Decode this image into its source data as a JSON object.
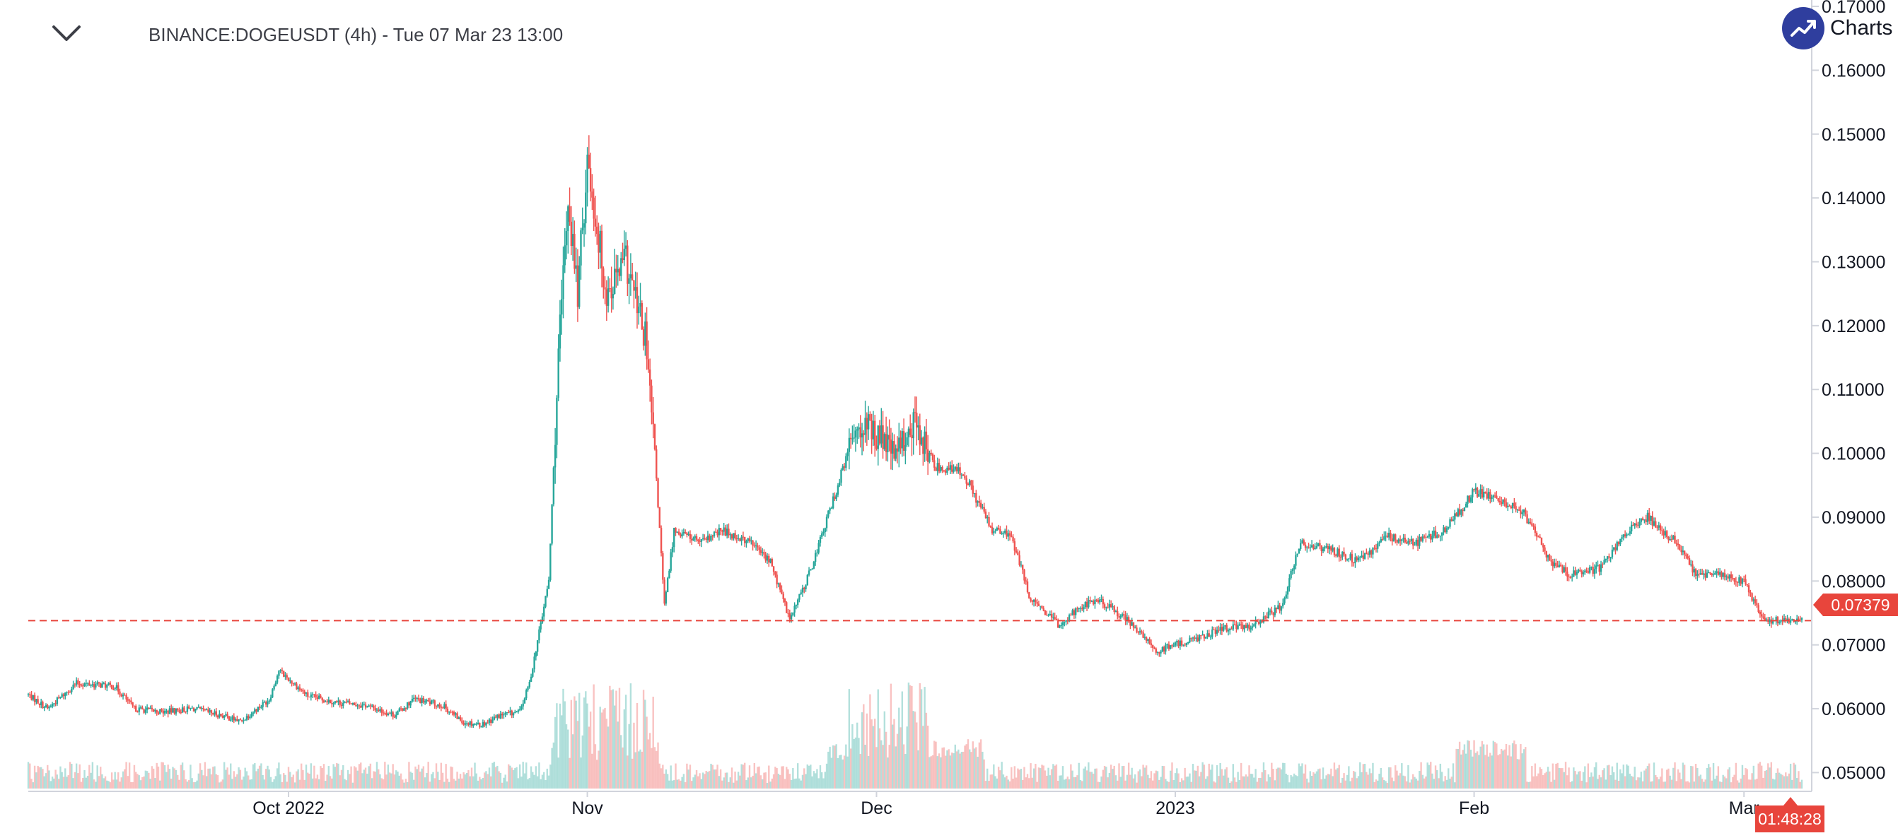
{
  "header": {
    "title": "BINANCE:DOGEUSDT (4h) - Tue 07 Mar 23 13:00"
  },
  "brand": {
    "label": "Charts p"
  },
  "price_marker": {
    "label": "0.07379"
  },
  "countdown": {
    "label": "01:48:28"
  },
  "colors": {
    "up": "#26a69a",
    "down": "#ef5350",
    "axis": "#d1d4dc",
    "text": "#131722",
    "marker": "#e8453c"
  },
  "chart_data": {
    "type": "candlestick",
    "symbol": "BINANCE:DOGEUSDT",
    "interval": "4h",
    "y_axis_ticks": [
      "0.17000",
      "0.16000",
      "0.15000",
      "0.14000",
      "0.13000",
      "0.12000",
      "0.11000",
      "0.10000",
      "0.09000",
      "0.08000",
      "0.07000",
      "0.06000",
      "0.05000"
    ],
    "ylim": [
      0.0475,
      0.171
    ],
    "x_axis_ticks": [
      {
        "label": "Oct 2022",
        "date": "2022-10-01"
      },
      {
        "label": "Nov",
        "date": "2022-11-01"
      },
      {
        "label": "Dec",
        "date": "2022-12-01"
      },
      {
        "label": "2023",
        "date": "2023-01-01"
      },
      {
        "label": "Feb",
        "date": "2023-02-01"
      },
      {
        "label": "Mar",
        "date": "2023-03-01"
      }
    ],
    "x_range": [
      "2022-09-04",
      "2023-03-07"
    ],
    "last_price": 0.07379,
    "series": [
      {
        "name": "close",
        "points": [
          [
            "2022-09-04",
            0.0622
          ],
          [
            "2022-09-06",
            0.06
          ],
          [
            "2022-09-09",
            0.064
          ],
          [
            "2022-09-13",
            0.0635
          ],
          [
            "2022-09-15",
            0.06
          ],
          [
            "2022-09-18",
            0.0595
          ],
          [
            "2022-09-21",
            0.06
          ],
          [
            "2022-09-24",
            0.059
          ],
          [
            "2022-09-26",
            0.058
          ],
          [
            "2022-09-29",
            0.0615
          ],
          [
            "2022-09-30",
            0.066
          ],
          [
            "2022-10-03",
            0.062
          ],
          [
            "2022-10-06",
            0.061
          ],
          [
            "2022-10-09",
            0.0605
          ],
          [
            "2022-10-12",
            0.059
          ],
          [
            "2022-10-14",
            0.0615
          ],
          [
            "2022-10-17",
            0.0605
          ],
          [
            "2022-10-19",
            0.058
          ],
          [
            "2022-10-21",
            0.0575
          ],
          [
            "2022-10-23",
            0.059
          ],
          [
            "2022-10-25",
            0.0595
          ],
          [
            "2022-10-26",
            0.064
          ],
          [
            "2022-10-27",
            0.072
          ],
          [
            "2022-10-28",
            0.08
          ],
          [
            "2022-10-29",
            0.115
          ],
          [
            "2022-10-30",
            0.14
          ],
          [
            "2022-10-31",
            0.125
          ],
          [
            "2022-11-01",
            0.146
          ],
          [
            "2022-11-03",
            0.125
          ],
          [
            "2022-11-05",
            0.13
          ],
          [
            "2022-11-07",
            0.118
          ],
          [
            "2022-11-08",
            0.1
          ],
          [
            "2022-11-09",
            0.076
          ],
          [
            "2022-11-10",
            0.088
          ],
          [
            "2022-11-13",
            0.086
          ],
          [
            "2022-11-15",
            0.088
          ],
          [
            "2022-11-18",
            0.086
          ],
          [
            "2022-11-20",
            0.083
          ],
          [
            "2022-11-22",
            0.074
          ],
          [
            "2022-11-24",
            0.081
          ],
          [
            "2022-11-27",
            0.095
          ],
          [
            "2022-11-29",
            0.105
          ],
          [
            "2022-12-01",
            0.103
          ],
          [
            "2022-12-03",
            0.1
          ],
          [
            "2022-12-05",
            0.105
          ],
          [
            "2022-12-07",
            0.098
          ],
          [
            "2022-12-10",
            0.097
          ],
          [
            "2022-12-13",
            0.088
          ],
          [
            "2022-12-15",
            0.087
          ],
          [
            "2022-12-17",
            0.077
          ],
          [
            "2022-12-20",
            0.073
          ],
          [
            "2022-12-22",
            0.076
          ],
          [
            "2022-12-24",
            0.077
          ],
          [
            "2022-12-27",
            0.074
          ],
          [
            "2022-12-30",
            0.069
          ],
          [
            "2023-01-01",
            0.07
          ],
          [
            "2023-01-03",
            0.071
          ],
          [
            "2023-01-06",
            0.0725
          ],
          [
            "2023-01-09",
            0.073
          ],
          [
            "2023-01-12",
            0.076
          ],
          [
            "2023-01-14",
            0.086
          ],
          [
            "2023-01-17",
            0.085
          ],
          [
            "2023-01-20",
            0.083
          ],
          [
            "2023-01-23",
            0.087
          ],
          [
            "2023-01-26",
            0.086
          ],
          [
            "2023-01-29",
            0.088
          ],
          [
            "2023-02-01",
            0.094
          ],
          [
            "2023-02-03",
            0.093
          ],
          [
            "2023-02-06",
            0.091
          ],
          [
            "2023-02-09",
            0.083
          ],
          [
            "2023-02-11",
            0.081
          ],
          [
            "2023-02-14",
            0.082
          ],
          [
            "2023-02-17",
            0.088
          ],
          [
            "2023-02-19",
            0.09
          ],
          [
            "2023-02-22",
            0.086
          ],
          [
            "2023-02-24",
            0.081
          ],
          [
            "2023-02-27",
            0.081
          ],
          [
            "2023-03-01",
            0.08
          ],
          [
            "2023-03-03",
            0.074
          ],
          [
            "2023-03-05",
            0.0737
          ],
          [
            "2023-03-07",
            0.0738
          ]
        ]
      }
    ],
    "volume_series": {
      "name": "volume",
      "ylim": [
        0,
        1
      ]
    }
  }
}
